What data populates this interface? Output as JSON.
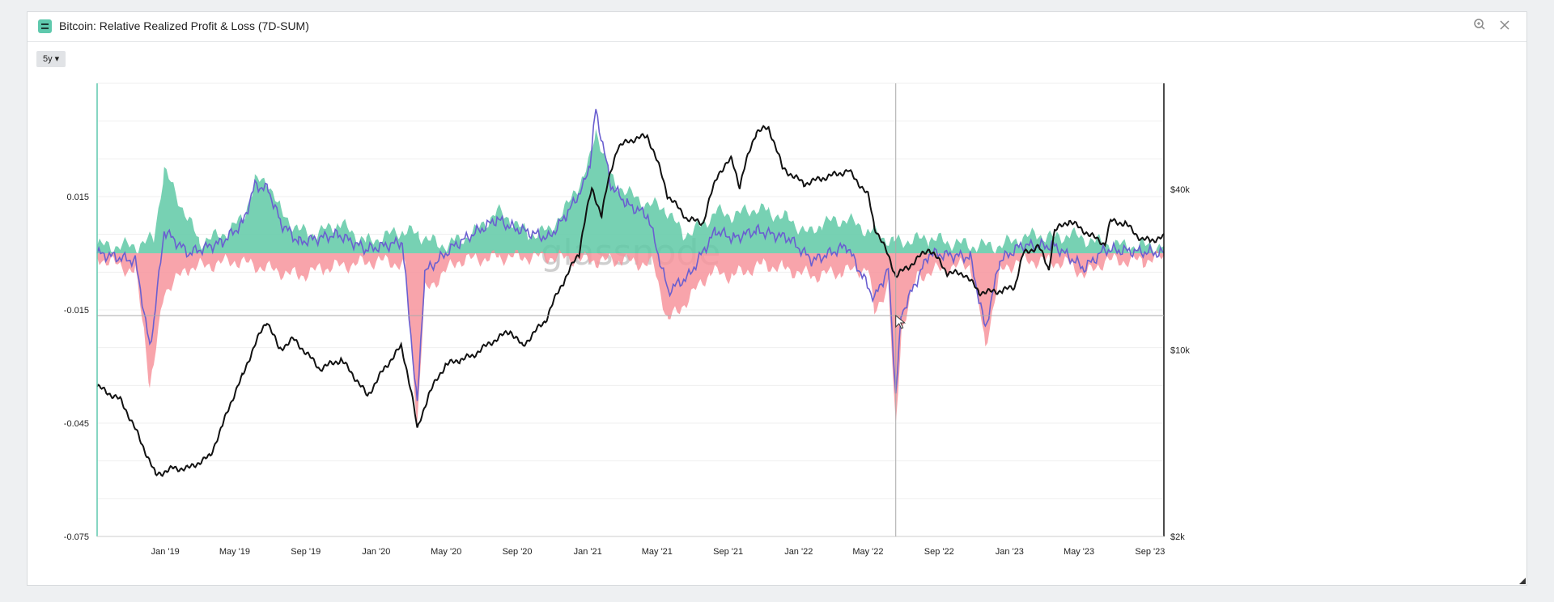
{
  "window": {
    "title": "Bitcoin: Relative Realized Profit & Loss (7D-SUM)",
    "zoom_icon": "zoom-icon",
    "close_icon": "close-icon",
    "range_button": "5y ▾"
  },
  "watermark": "glassnode",
  "colors": {
    "profit": "#5fc9a6",
    "loss": "#f7949c",
    "net": "#6a5fd0",
    "price": "#111111",
    "accent": "#5fc9ad"
  },
  "chart_data": {
    "type": "area",
    "title": "Bitcoin: Relative Realized Profit & Loss (7D-SUM)",
    "x_range": [
      "2018-09-05",
      "2023-09-25"
    ],
    "x_ticks": [
      "Jan '19",
      "May '19",
      "Sep '19",
      "Jan '20",
      "May '20",
      "Sep '20",
      "Jan '21",
      "May '21",
      "Sep '21",
      "Jan '22",
      "May '22",
      "Sep '22",
      "Jan '23",
      "May '23",
      "Sep '23"
    ],
    "y_left": {
      "ticks": [
        0.015,
        -0.015,
        -0.045,
        -0.075
      ],
      "tick_labels": [
        "0.015",
        "-0.015",
        "-0.045",
        "-0.075"
      ],
      "range": [
        -0.075,
        0.045
      ]
    },
    "y_right": {
      "scale": "log",
      "ticks": [
        40000,
        10000,
        2000
      ],
      "tick_labels": [
        "$40k",
        "$10k",
        "$2k"
      ],
      "range": [
        2000,
        100000
      ]
    },
    "legend": "none",
    "grid": true,
    "series": [
      {
        "key": "profit",
        "axis": "left",
        "style": "area",
        "x": [
          "2018-09-05",
          "2018-11-15",
          "2018-12-12",
          "2018-12-30",
          "2019-03-01",
          "2019-04-10",
          "2019-05-15",
          "2019-06-05",
          "2019-06-28",
          "2019-07-20",
          "2019-08-20",
          "2019-09-20",
          "2019-10-27",
          "2019-12-15",
          "2020-02-15",
          "2020-03-15",
          "2020-04-20",
          "2020-05-15",
          "2020-06-15",
          "2020-07-28",
          "2020-08-20",
          "2020-09-20",
          "2020-10-25",
          "2020-11-25",
          "2020-12-10",
          "2020-12-25",
          "2021-01-05",
          "2021-01-15",
          "2021-02-10",
          "2021-03-10",
          "2021-04-15",
          "2021-05-15",
          "2021-06-15",
          "2021-07-15",
          "2021-08-10",
          "2021-09-10",
          "2021-10-20",
          "2021-11-10",
          "2021-12-15",
          "2022-01-20",
          "2022-02-10",
          "2022-03-25",
          "2022-05-01",
          "2022-06-15",
          "2022-08-15",
          "2022-09-15",
          "2022-11-01",
          "2022-12-15",
          "2023-01-20",
          "2023-02-20",
          "2023-03-20",
          "2023-04-15",
          "2023-06-01",
          "2023-07-15",
          "2023-09-25"
        ],
        "values": [
          0.002,
          0.002,
          0.004,
          0.022,
          0.003,
          0.005,
          0.009,
          0.019,
          0.019,
          0.011,
          0.006,
          0.005,
          0.008,
          0.003,
          0.006,
          0.005,
          0.002,
          0.003,
          0.005,
          0.011,
          0.009,
          0.005,
          0.006,
          0.012,
          0.017,
          0.02,
          0.025,
          0.033,
          0.02,
          0.016,
          0.013,
          0.012,
          0.005,
          0.007,
          0.011,
          0.01,
          0.012,
          0.011,
          0.009,
          0.005,
          0.008,
          0.009,
          0.006,
          0.003,
          0.004,
          0.003,
          0.002,
          0.002,
          0.004,
          0.005,
          0.004,
          0.005,
          0.003,
          0.002,
          0.002
        ]
      },
      {
        "key": "loss",
        "axis": "left",
        "style": "area",
        "x": [
          "2018-09-05",
          "2018-11-10",
          "2018-11-25",
          "2018-12-05",
          "2018-12-12",
          "2018-12-30",
          "2019-02-10",
          "2019-05-01",
          "2019-08-20",
          "2019-10-01",
          "2020-01-05",
          "2020-02-20",
          "2020-03-12",
          "2020-03-25",
          "2020-05-20",
          "2020-08-01",
          "2020-11-01",
          "2021-01-15",
          "2021-03-01",
          "2021-04-25",
          "2021-05-20",
          "2021-06-25",
          "2021-08-01",
          "2021-09-07",
          "2021-11-01",
          "2021-12-05",
          "2022-01-25",
          "2022-03-15",
          "2022-05-01",
          "2022-05-12",
          "2022-06-05",
          "2022-06-18",
          "2022-06-28",
          "2022-07-25",
          "2022-09-10",
          "2022-10-25",
          "2022-11-10",
          "2022-11-20",
          "2022-12-15",
          "2023-01-15",
          "2023-03-10",
          "2023-04-20",
          "2023-05-10",
          "2023-06-15",
          "2023-08-20",
          "2023-09-25"
        ],
        "values": [
          -0.001,
          -0.005,
          -0.02,
          -0.035,
          -0.03,
          -0.01,
          -0.004,
          -0.002,
          -0.006,
          -0.004,
          -0.002,
          -0.003,
          -0.045,
          -0.01,
          -0.002,
          -0.001,
          -0.001,
          -0.002,
          -0.002,
          -0.003,
          -0.018,
          -0.012,
          -0.005,
          -0.006,
          -0.003,
          -0.004,
          -0.006,
          -0.005,
          -0.004,
          -0.016,
          -0.008,
          -0.047,
          -0.02,
          -0.006,
          -0.004,
          -0.003,
          -0.015,
          -0.025,
          -0.005,
          -0.002,
          -0.002,
          -0.003,
          -0.006,
          -0.002,
          -0.002,
          -0.001
        ]
      },
      {
        "key": "net",
        "axis": "left",
        "style": "line",
        "x": [
          "2018-09-05",
          "2018-11-10",
          "2018-11-25",
          "2018-12-05",
          "2018-12-12",
          "2018-12-30",
          "2019-02-10",
          "2019-04-10",
          "2019-05-15",
          "2019-06-05",
          "2019-06-28",
          "2019-07-20",
          "2019-08-20",
          "2019-10-27",
          "2019-12-15",
          "2020-02-15",
          "2020-03-12",
          "2020-03-25",
          "2020-05-15",
          "2020-07-28",
          "2020-08-20",
          "2020-10-25",
          "2020-11-25",
          "2020-12-25",
          "2021-01-05",
          "2021-01-15",
          "2021-02-10",
          "2021-03-10",
          "2021-04-15",
          "2021-05-20",
          "2021-06-25",
          "2021-08-10",
          "2021-09-10",
          "2021-10-20",
          "2021-12-15",
          "2022-01-25",
          "2022-03-25",
          "2022-05-12",
          "2022-06-05",
          "2022-06-18",
          "2022-06-28",
          "2022-08-15",
          "2022-10-25",
          "2022-11-20",
          "2022-12-15",
          "2023-01-20",
          "2023-03-20",
          "2023-05-10",
          "2023-06-15",
          "2023-09-25"
        ],
        "values": [
          0.0,
          -0.002,
          -0.015,
          -0.025,
          -0.018,
          0.006,
          0.0,
          0.003,
          0.008,
          0.018,
          0.017,
          0.008,
          0.003,
          0.005,
          0.001,
          0.003,
          -0.04,
          -0.005,
          0.002,
          0.009,
          0.007,
          0.004,
          0.01,
          0.018,
          0.024,
          0.038,
          0.018,
          0.013,
          0.01,
          -0.01,
          -0.006,
          0.006,
          0.004,
          0.006,
          0.004,
          -0.002,
          0.002,
          -0.012,
          -0.004,
          -0.037,
          -0.016,
          0.0,
          -0.001,
          -0.02,
          -0.002,
          0.002,
          0.002,
          -0.004,
          0.001,
          0.0
        ]
      },
      {
        "key": "price",
        "axis": "right",
        "style": "line",
        "x": [
          "2018-09-05",
          "2018-10-15",
          "2018-11-20",
          "2018-12-15",
          "2019-01-15",
          "2019-02-10",
          "2019-03-20",
          "2019-04-10",
          "2019-05-15",
          "2019-06-26",
          "2019-07-17",
          "2019-08-10",
          "2019-09-25",
          "2019-11-01",
          "2019-12-17",
          "2020-01-15",
          "2020-02-13",
          "2020-03-12",
          "2020-04-01",
          "2020-04-30",
          "2020-05-25",
          "2020-06-15",
          "2020-07-27",
          "2020-08-20",
          "2020-09-10",
          "2020-10-20",
          "2020-11-20",
          "2020-12-17",
          "2021-01-08",
          "2021-01-25",
          "2021-02-21",
          "2021-03-13",
          "2021-04-14",
          "2021-05-19",
          "2021-06-22",
          "2021-07-20",
          "2021-08-15",
          "2021-09-07",
          "2021-09-21",
          "2021-10-20",
          "2021-11-10",
          "2021-12-04",
          "2022-01-10",
          "2022-02-10",
          "2022-03-28",
          "2022-05-01",
          "2022-05-12",
          "2022-06-18",
          "2022-07-10",
          "2022-08-15",
          "2022-09-15",
          "2022-10-15",
          "2022-11-09",
          "2022-11-25",
          "2022-12-20",
          "2023-01-10",
          "2023-01-25",
          "2023-02-20",
          "2023-03-10",
          "2023-03-20",
          "2023-04-14",
          "2023-05-20",
          "2023-06-15",
          "2023-06-25",
          "2023-07-20",
          "2023-08-17",
          "2023-09-01",
          "2023-09-25"
        ],
        "values": [
          7300,
          6500,
          4500,
          3400,
          3600,
          3600,
          4000,
          5200,
          8000,
          12900,
          10000,
          11000,
          8500,
          9200,
          6700,
          8500,
          10300,
          5000,
          6800,
          8800,
          9200,
          9500,
          11000,
          11800,
          10300,
          12900,
          18000,
          23000,
          40000,
          32000,
          57000,
          61000,
          63500,
          38000,
          31000,
          30000,
          46000,
          52000,
          41000,
          66000,
          68000,
          48000,
          42000,
          44000,
          47000,
          38000,
          29000,
          19000,
          20500,
          24000,
          19500,
          19300,
          16500,
          16500,
          16700,
          17300,
          23000,
          24500,
          20000,
          28000,
          30500,
          27000,
          25000,
          30500,
          29800,
          26000,
          25800,
          26500
        ]
      }
    ]
  }
}
